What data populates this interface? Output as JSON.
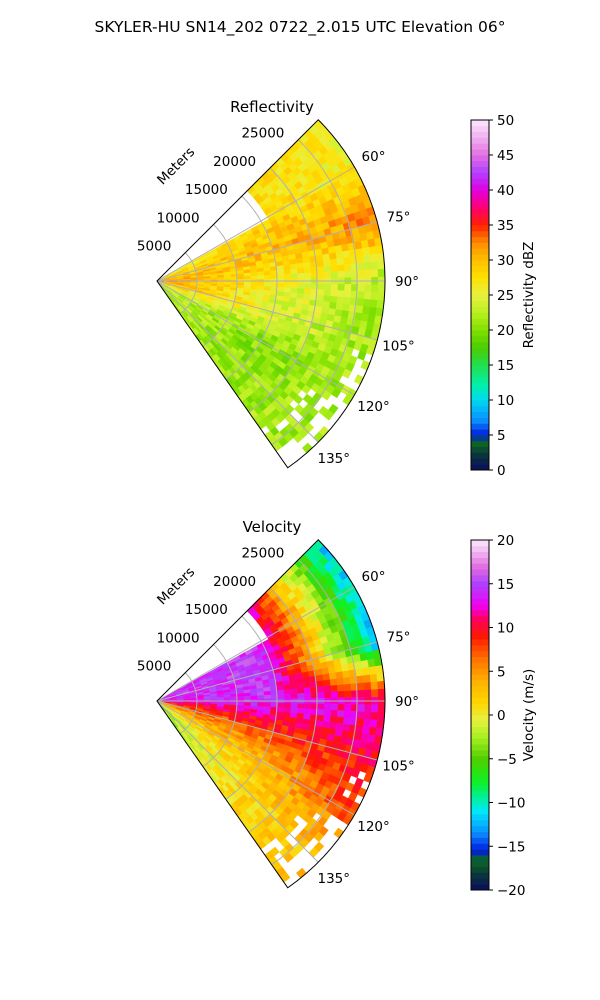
{
  "figure": {
    "suptitle": "SKYLER-HU  SN14_202  0722_2.015 UTC Elevation 06°"
  },
  "chart_data": [
    {
      "type": "heatmap",
      "subtype": "polar-ppi-sector",
      "title": "Reflectivity",
      "range_label": "Meters",
      "range_ticks": [
        5000,
        10000,
        15000,
        20000,
        25000
      ],
      "range_tick_labels": [
        "5000",
        "10000",
        "15000",
        "20000",
        "25000"
      ],
      "range_max": 28500,
      "azimuth_ticks": [
        60,
        75,
        90,
        105,
        120,
        135
      ],
      "azimuth_tick_labels": [
        "60°",
        "75°",
        "90°",
        "105°",
        "120°",
        "135°"
      ],
      "azimuth_range": [
        45,
        145
      ],
      "grid": true,
      "colorbar": {
        "label": "Reflectivity dBZ",
        "min": 0,
        "max": 50,
        "ticks": [
          0,
          5,
          10,
          15,
          20,
          25,
          30,
          35,
          40,
          45,
          50
        ],
        "tick_labels": [
          "0",
          "5",
          "10",
          "15",
          "20",
          "25",
          "30",
          "35",
          "40",
          "45",
          "50"
        ],
        "stops": [
          {
            "v": 0,
            "c": "#0c0c60"
          },
          {
            "v": 2,
            "c": "#0a3040"
          },
          {
            "v": 4,
            "c": "#0b6a20"
          },
          {
            "v": 5,
            "c": "#0018e0"
          },
          {
            "v": 7,
            "c": "#0a8cff"
          },
          {
            "v": 10,
            "c": "#00d8f0"
          },
          {
            "v": 12,
            "c": "#00f0b0"
          },
          {
            "v": 15,
            "c": "#20e050"
          },
          {
            "v": 17.5,
            "c": "#4ccc00"
          },
          {
            "v": 20,
            "c": "#80e000"
          },
          {
            "v": 22.5,
            "c": "#b8f020"
          },
          {
            "v": 25,
            "c": "#e8f040"
          },
          {
            "v": 27.5,
            "c": "#ffe000"
          },
          {
            "v": 30,
            "c": "#ffc000"
          },
          {
            "v": 32.5,
            "c": "#ff8c00"
          },
          {
            "v": 35,
            "c": "#ff2000"
          },
          {
            "v": 37.5,
            "c": "#ff0070"
          },
          {
            "v": 40,
            "c": "#e000e0"
          },
          {
            "v": 42.5,
            "c": "#b040ff"
          },
          {
            "v": 45,
            "c": "#e070e0"
          },
          {
            "v": 47.5,
            "c": "#f0b0f0"
          },
          {
            "v": 50,
            "c": "#fbe8fb"
          }
        ]
      },
      "field_summary": [
        {
          "azimuth": 60,
          "near": 25,
          "mid": 28,
          "far": 26
        },
        {
          "azimuth": 75,
          "near": 29,
          "mid": 30,
          "far": 33
        },
        {
          "azimuth": 90,
          "near": 33,
          "mid": 26,
          "far": 22
        },
        {
          "azimuth": 105,
          "near": 31,
          "mid": 25,
          "far": 21
        },
        {
          "azimuth": 120,
          "near": 24,
          "mid": 20,
          "far": 22
        },
        {
          "azimuth": 135,
          "near": 22,
          "mid": 21,
          "far": 22
        }
      ]
    },
    {
      "type": "heatmap",
      "subtype": "polar-ppi-sector",
      "title": "Velocity",
      "range_label": "Meters",
      "range_ticks": [
        5000,
        10000,
        15000,
        20000,
        25000
      ],
      "range_tick_labels": [
        "5000",
        "10000",
        "15000",
        "20000",
        "25000"
      ],
      "range_max": 28500,
      "azimuth_ticks": [
        60,
        75,
        90,
        105,
        120,
        135
      ],
      "azimuth_tick_labels": [
        "60°",
        "75°",
        "90°",
        "105°",
        "120°",
        "135°"
      ],
      "azimuth_range": [
        45,
        145
      ],
      "grid": true,
      "colorbar": {
        "label": "Velocity (m/s)",
        "min": -20,
        "max": 20,
        "ticks": [
          -20,
          -15,
          -10,
          -5,
          0,
          5,
          10,
          15,
          20
        ],
        "tick_labels": [
          "−20",
          "−15",
          "−10",
          "−5",
          "0",
          "5",
          "10",
          "15",
          "20"
        ],
        "stops": [
          {
            "v": -20,
            "c": "#0c0c60"
          },
          {
            "v": -18.5,
            "c": "#0a3040"
          },
          {
            "v": -16.5,
            "c": "#0b6a20"
          },
          {
            "v": -15.5,
            "c": "#0018e0"
          },
          {
            "v": -13.5,
            "c": "#0a8cff"
          },
          {
            "v": -11,
            "c": "#00e8f8"
          },
          {
            "v": -9.5,
            "c": "#00f0a0"
          },
          {
            "v": -7.5,
            "c": "#10f020"
          },
          {
            "v": -5,
            "c": "#50d000"
          },
          {
            "v": -2.5,
            "c": "#a8f020"
          },
          {
            "v": -0.5,
            "c": "#e8f040"
          },
          {
            "v": 1.5,
            "c": "#ffd400"
          },
          {
            "v": 4,
            "c": "#ffb000"
          },
          {
            "v": 6.5,
            "c": "#ff7000"
          },
          {
            "v": 9,
            "c": "#ff1800"
          },
          {
            "v": 11,
            "c": "#ff0060"
          },
          {
            "v": 12.5,
            "c": "#f000f0"
          },
          {
            "v": 15,
            "c": "#b040ff"
          },
          {
            "v": 17,
            "c": "#e070e0"
          },
          {
            "v": 18.5,
            "c": "#f0b0f0"
          },
          {
            "v": 20,
            "c": "#fbe8fb"
          }
        ]
      },
      "field_summary": [
        {
          "azimuth": 60,
          "near": 14,
          "mid": 15,
          "far": -12
        },
        {
          "azimuth": 75,
          "near": 14,
          "mid": 15,
          "far": -13
        },
        {
          "azimuth": 90,
          "near": 13,
          "mid": 14,
          "far": 12
        },
        {
          "azimuth": 105,
          "near": 6,
          "mid": 8,
          "far": 10
        },
        {
          "azimuth": 120,
          "near": 2,
          "mid": 3,
          "far": 8
        },
        {
          "azimuth": 135,
          "near": -3,
          "mid": 1,
          "far": 3
        }
      ]
    }
  ]
}
